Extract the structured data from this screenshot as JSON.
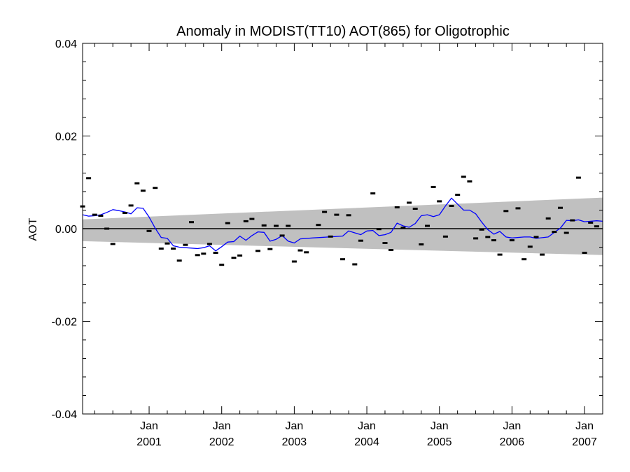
{
  "chart_data": {
    "type": "line",
    "title": "Anomaly in MODIST(TT10) AOT(865) for Oligotrophic",
    "xlabel": "",
    "ylabel": "AOT",
    "x_axis": "monthly dates",
    "xlim": [
      "2000-02",
      "2007-04"
    ],
    "ylim": [
      -0.04,
      0.04
    ],
    "y_ticks": [
      {
        "value": 0.04,
        "label": "0.04"
      },
      {
        "value": 0.02,
        "label": "0.02"
      },
      {
        "value": 0.0,
        "label": "0.00"
      },
      {
        "value": -0.02,
        "label": "-0.02"
      },
      {
        "value": -0.04,
        "label": "-0.04"
      }
    ],
    "x_ticks": [
      {
        "date": "2001-01",
        "month": "Jan",
        "year": "2001"
      },
      {
        "date": "2002-01",
        "month": "Jan",
        "year": "2002"
      },
      {
        "date": "2003-01",
        "month": "Jan",
        "year": "2003"
      },
      {
        "date": "2004-01",
        "month": "Jan",
        "year": "2004"
      },
      {
        "date": "2005-01",
        "month": "Jan",
        "year": "2005"
      },
      {
        "date": "2006-01",
        "month": "Jan",
        "year": "2006"
      },
      {
        "date": "2007-01",
        "month": "Jan",
        "year": "2007"
      }
    ],
    "grid": false,
    "legend": "none",
    "zero_line": 0.0,
    "confidence_band": {
      "color": "#c0c0c0",
      "start": {
        "date": "2000-02",
        "upper": 0.002,
        "lower": -0.0027
      },
      "end": {
        "date": "2007-04",
        "upper": 0.0067,
        "lower": -0.0057
      }
    },
    "series": [
      {
        "style": "markers",
        "marker": "dash",
        "color": "#000000",
        "points": [
          {
            "x": "2000-02",
            "y": 0.0048
          },
          {
            "x": "2000-03",
            "y": 0.0109
          },
          {
            "x": "2000-04",
            "y": 0.003
          },
          {
            "x": "2000-05",
            "y": 0.0028
          },
          {
            "x": "2000-06",
            "y": 0.0
          },
          {
            "x": "2000-07",
            "y": -0.0033
          },
          {
            "x": "2000-09",
            "y": 0.0034
          },
          {
            "x": "2000-10",
            "y": 0.005
          },
          {
            "x": "2000-11",
            "y": 0.0098
          },
          {
            "x": "2000-12",
            "y": 0.0082
          },
          {
            "x": "2001-01",
            "y": -0.0005
          },
          {
            "x": "2001-02",
            "y": 0.0088
          },
          {
            "x": "2001-03",
            "y": -0.0043
          },
          {
            "x": "2001-04",
            "y": -0.0032
          },
          {
            "x": "2001-05",
            "y": -0.0043
          },
          {
            "x": "2001-06",
            "y": -0.0069
          },
          {
            "x": "2001-07",
            "y": -0.0035
          },
          {
            "x": "2001-08",
            "y": 0.0014
          },
          {
            "x": "2001-09",
            "y": -0.0057
          },
          {
            "x": "2001-10",
            "y": -0.0054
          },
          {
            "x": "2001-11",
            "y": -0.0033
          },
          {
            "x": "2001-12",
            "y": -0.0052
          },
          {
            "x": "2002-01",
            "y": -0.0078
          },
          {
            "x": "2002-02",
            "y": 0.0012
          },
          {
            "x": "2002-03",
            "y": -0.0063
          },
          {
            "x": "2002-04",
            "y": -0.0058
          },
          {
            "x": "2002-05",
            "y": 0.0016
          },
          {
            "x": "2002-06",
            "y": 0.0021
          },
          {
            "x": "2002-07",
            "y": -0.0048
          },
          {
            "x": "2002-08",
            "y": 0.0007
          },
          {
            "x": "2002-09",
            "y": -0.0044
          },
          {
            "x": "2002-10",
            "y": 0.0006
          },
          {
            "x": "2002-11",
            "y": -0.0015
          },
          {
            "x": "2002-12",
            "y": 0.0006
          },
          {
            "x": "2003-01",
            "y": -0.0071
          },
          {
            "x": "2003-02",
            "y": -0.0047
          },
          {
            "x": "2003-03",
            "y": -0.0051
          },
          {
            "x": "2003-05",
            "y": 0.0008
          },
          {
            "x": "2003-06",
            "y": 0.0036
          },
          {
            "x": "2003-07",
            "y": -0.0017
          },
          {
            "x": "2003-08",
            "y": 0.003
          },
          {
            "x": "2003-09",
            "y": -0.0066
          },
          {
            "x": "2003-10",
            "y": 0.0029
          },
          {
            "x": "2003-11",
            "y": -0.0077
          },
          {
            "x": "2003-12",
            "y": -0.0026
          },
          {
            "x": "2004-02",
            "y": 0.0076
          },
          {
            "x": "2004-03",
            "y": -0.0001
          },
          {
            "x": "2004-04",
            "y": -0.0031
          },
          {
            "x": "2004-05",
            "y": -0.0046
          },
          {
            "x": "2004-06",
            "y": 0.0046
          },
          {
            "x": "2004-07",
            "y": 0.0002
          },
          {
            "x": "2004-08",
            "y": 0.0056
          },
          {
            "x": "2004-09",
            "y": 0.0043
          },
          {
            "x": "2004-10",
            "y": -0.0034
          },
          {
            "x": "2004-11",
            "y": 0.0006
          },
          {
            "x": "2004-12",
            "y": 0.009
          },
          {
            "x": "2005-01",
            "y": 0.0059
          },
          {
            "x": "2005-02",
            "y": -0.0017
          },
          {
            "x": "2005-03",
            "y": 0.0049
          },
          {
            "x": "2005-04",
            "y": 0.0073
          },
          {
            "x": "2005-05",
            "y": 0.0112
          },
          {
            "x": "2005-06",
            "y": 0.0102
          },
          {
            "x": "2005-07",
            "y": -0.0021
          },
          {
            "x": "2005-08",
            "y": -0.0002
          },
          {
            "x": "2005-09",
            "y": -0.0018
          },
          {
            "x": "2005-10",
            "y": -0.0025
          },
          {
            "x": "2005-11",
            "y": -0.0056
          },
          {
            "x": "2005-12",
            "y": 0.0038
          },
          {
            "x": "2006-01",
            "y": -0.0025
          },
          {
            "x": "2006-02",
            "y": 0.0044
          },
          {
            "x": "2006-03",
            "y": -0.0066
          },
          {
            "x": "2006-04",
            "y": -0.0039
          },
          {
            "x": "2006-05",
            "y": -0.0018
          },
          {
            "x": "2006-06",
            "y": -0.0056
          },
          {
            "x": "2006-07",
            "y": 0.0022
          },
          {
            "x": "2006-08",
            "y": -0.0007
          },
          {
            "x": "2006-09",
            "y": 0.0045
          },
          {
            "x": "2006-10",
            "y": -0.0009
          },
          {
            "x": "2006-11",
            "y": 0.0018
          },
          {
            "x": "2006-12",
            "y": 0.011
          },
          {
            "x": "2007-01",
            "y": -0.0052
          },
          {
            "x": "2007-02",
            "y": 0.0013
          },
          {
            "x": "2007-03",
            "y": 0.0005
          }
        ]
      },
      {
        "style": "line",
        "color": "#0000ff",
        "points": [
          {
            "x": "2000-02",
            "y": 0.003
          },
          {
            "x": "2000-03",
            "y": 0.0027
          },
          {
            "x": "2000-04",
            "y": 0.0028
          },
          {
            "x": "2000-05",
            "y": 0.003
          },
          {
            "x": "2000-06",
            "y": 0.0035
          },
          {
            "x": "2000-07",
            "y": 0.0041
          },
          {
            "x": "2000-08",
            "y": 0.0039
          },
          {
            "x": "2000-09",
            "y": 0.0036
          },
          {
            "x": "2000-10",
            "y": 0.0032
          },
          {
            "x": "2000-11",
            "y": 0.0045
          },
          {
            "x": "2000-12",
            "y": 0.0044
          },
          {
            "x": "2001-01",
            "y": 0.0025
          },
          {
            "x": "2001-02",
            "y": 0.0001
          },
          {
            "x": "2001-03",
            "y": -0.0019
          },
          {
            "x": "2001-04",
            "y": -0.0021
          },
          {
            "x": "2001-05",
            "y": -0.0037
          },
          {
            "x": "2001-06",
            "y": -0.004
          },
          {
            "x": "2001-07",
            "y": -0.0041
          },
          {
            "x": "2001-08",
            "y": -0.0042
          },
          {
            "x": "2001-09",
            "y": -0.0043
          },
          {
            "x": "2001-10",
            "y": -0.0041
          },
          {
            "x": "2001-11",
            "y": -0.0037
          },
          {
            "x": "2001-12",
            "y": -0.0048
          },
          {
            "x": "2002-01",
            "y": -0.0039
          },
          {
            "x": "2002-02",
            "y": -0.0029
          },
          {
            "x": "2002-03",
            "y": -0.0028
          },
          {
            "x": "2002-04",
            "y": -0.0016
          },
          {
            "x": "2002-05",
            "y": -0.0025
          },
          {
            "x": "2002-06",
            "y": -0.0015
          },
          {
            "x": "2002-07",
            "y": -0.0007
          },
          {
            "x": "2002-08",
            "y": -0.0008
          },
          {
            "x": "2002-09",
            "y": -0.0027
          },
          {
            "x": "2002-10",
            "y": -0.0023
          },
          {
            "x": "2002-11",
            "y": -0.0015
          },
          {
            "x": "2002-12",
            "y": -0.0027
          },
          {
            "x": "2003-01",
            "y": -0.0031
          },
          {
            "x": "2003-02",
            "y": -0.0022
          },
          {
            "x": "2003-04",
            "y": -0.002
          },
          {
            "x": "2003-09",
            "y": -0.0016
          },
          {
            "x": "2003-10",
            "y": -0.0005
          },
          {
            "x": "2003-11",
            "y": -0.0009
          },
          {
            "x": "2003-12",
            "y": -0.0013
          },
          {
            "x": "2004-01",
            "y": -0.0005
          },
          {
            "x": "2004-02",
            "y": -0.0004
          },
          {
            "x": "2004-03",
            "y": -0.0015
          },
          {
            "x": "2004-04",
            "y": -0.0013
          },
          {
            "x": "2004-05",
            "y": -0.0008
          },
          {
            "x": "2004-06",
            "y": 0.0012
          },
          {
            "x": "2004-07",
            "y": 0.0006
          },
          {
            "x": "2004-08",
            "y": 0.0003
          },
          {
            "x": "2004-09",
            "y": 0.0011
          },
          {
            "x": "2004-10",
            "y": 0.0028
          },
          {
            "x": "2004-11",
            "y": 0.003
          },
          {
            "x": "2004-12",
            "y": 0.0026
          },
          {
            "x": "2005-01",
            "y": 0.003
          },
          {
            "x": "2005-02",
            "y": 0.0049
          },
          {
            "x": "2005-03",
            "y": 0.0066
          },
          {
            "x": "2005-04",
            "y": 0.0053
          },
          {
            "x": "2005-05",
            "y": 0.004
          },
          {
            "x": "2005-06",
            "y": 0.004
          },
          {
            "x": "2005-07",
            "y": 0.0032
          },
          {
            "x": "2005-08",
            "y": 0.0014
          },
          {
            "x": "2005-09",
            "y": -0.0002
          },
          {
            "x": "2005-10",
            "y": -0.0012
          },
          {
            "x": "2005-11",
            "y": -0.0006
          },
          {
            "x": "2005-12",
            "y": -0.0018
          },
          {
            "x": "2006-01",
            "y": -0.002
          },
          {
            "x": "2006-03",
            "y": -0.0018
          },
          {
            "x": "2006-04",
            "y": -0.0018
          },
          {
            "x": "2006-05",
            "y": -0.0021
          },
          {
            "x": "2006-07",
            "y": -0.0018
          },
          {
            "x": "2006-08",
            "y": -0.0008
          },
          {
            "x": "2006-09",
            "y": 0.0001
          },
          {
            "x": "2006-10",
            "y": 0.0018
          },
          {
            "x": "2006-11",
            "y": 0.0017
          },
          {
            "x": "2006-12",
            "y": 0.0019
          },
          {
            "x": "2007-01",
            "y": 0.0015
          },
          {
            "x": "2007-02",
            "y": 0.0016
          },
          {
            "x": "2007-03",
            "y": 0.0017
          },
          {
            "x": "2007-04",
            "y": 0.0016
          }
        ]
      }
    ]
  }
}
